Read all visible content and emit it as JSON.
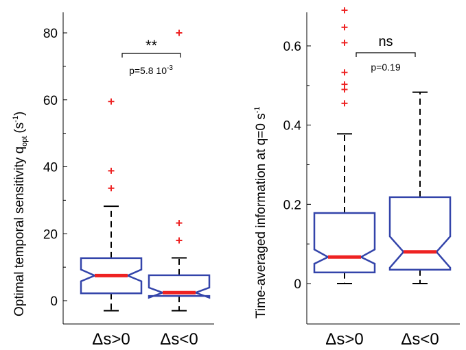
{
  "chart_data": [
    {
      "type": "box",
      "ylabel_main": "Optimal temporal sensitivity q",
      "ylabel_sub": "opt",
      "ylabel_unit": "(s",
      "ylabel_unit_sup": "-1",
      "ylabel_unit_close": ")",
      "ylim": [
        -7,
        85
      ],
      "yticks": [
        0,
        20,
        40,
        60,
        80
      ],
      "categories": [
        "Δs>0",
        "Δs<0"
      ],
      "boxes": [
        {
          "whisker_low": -3,
          "q1": 2.2,
          "median": 7.5,
          "q3": 12.7,
          "whisker_high": 28.2,
          "notch_low": 5.8,
          "notch_high": 9.3,
          "outliers": [
            33.6,
            38.8,
            59.5
          ]
        },
        {
          "whisker_low": -3,
          "q1": 1.4,
          "median": 2.4,
          "q3": 7.6,
          "whisker_high": 12.8,
          "notch_low": 0.9,
          "notch_high": 3.9,
          "outliers": [
            18.0,
            23.2,
            80.0
          ]
        }
      ],
      "annotation": {
        "stars": "**",
        "p_text": "p=5.8 10",
        "p_sup": "-3"
      }
    },
    {
      "type": "box",
      "ylabel": "Time-averaged information at q=0 s",
      "ylabel_sup": "-1",
      "ylim": [
        -0.11,
        0.68
      ],
      "yticks": [
        "0",
        "0.2",
        "0.4",
        "0.6"
      ],
      "ytick_values": [
        0,
        0.2,
        0.4,
        0.6
      ],
      "categories": [
        "Δs>0",
        "Δs<0"
      ],
      "boxes": [
        {
          "whisker_low": 0,
          "q1": 0.028,
          "median": 0.067,
          "q3": 0.178,
          "whisker_high": 0.378,
          "notch_low": 0.05,
          "notch_high": 0.086,
          "outliers": [
            0.455,
            0.49,
            0.503,
            0.533,
            0.608,
            0.647,
            0.69
          ]
        },
        {
          "whisker_low": 0,
          "q1": 0.035,
          "median": 0.08,
          "q3": 0.218,
          "whisker_high": 0.483,
          "notch_low": 0.04,
          "notch_high": 0.119,
          "outliers": []
        }
      ],
      "annotation": {
        "stars": "ns",
        "p_text": "p=0.19",
        "p_sup": ""
      }
    }
  ]
}
